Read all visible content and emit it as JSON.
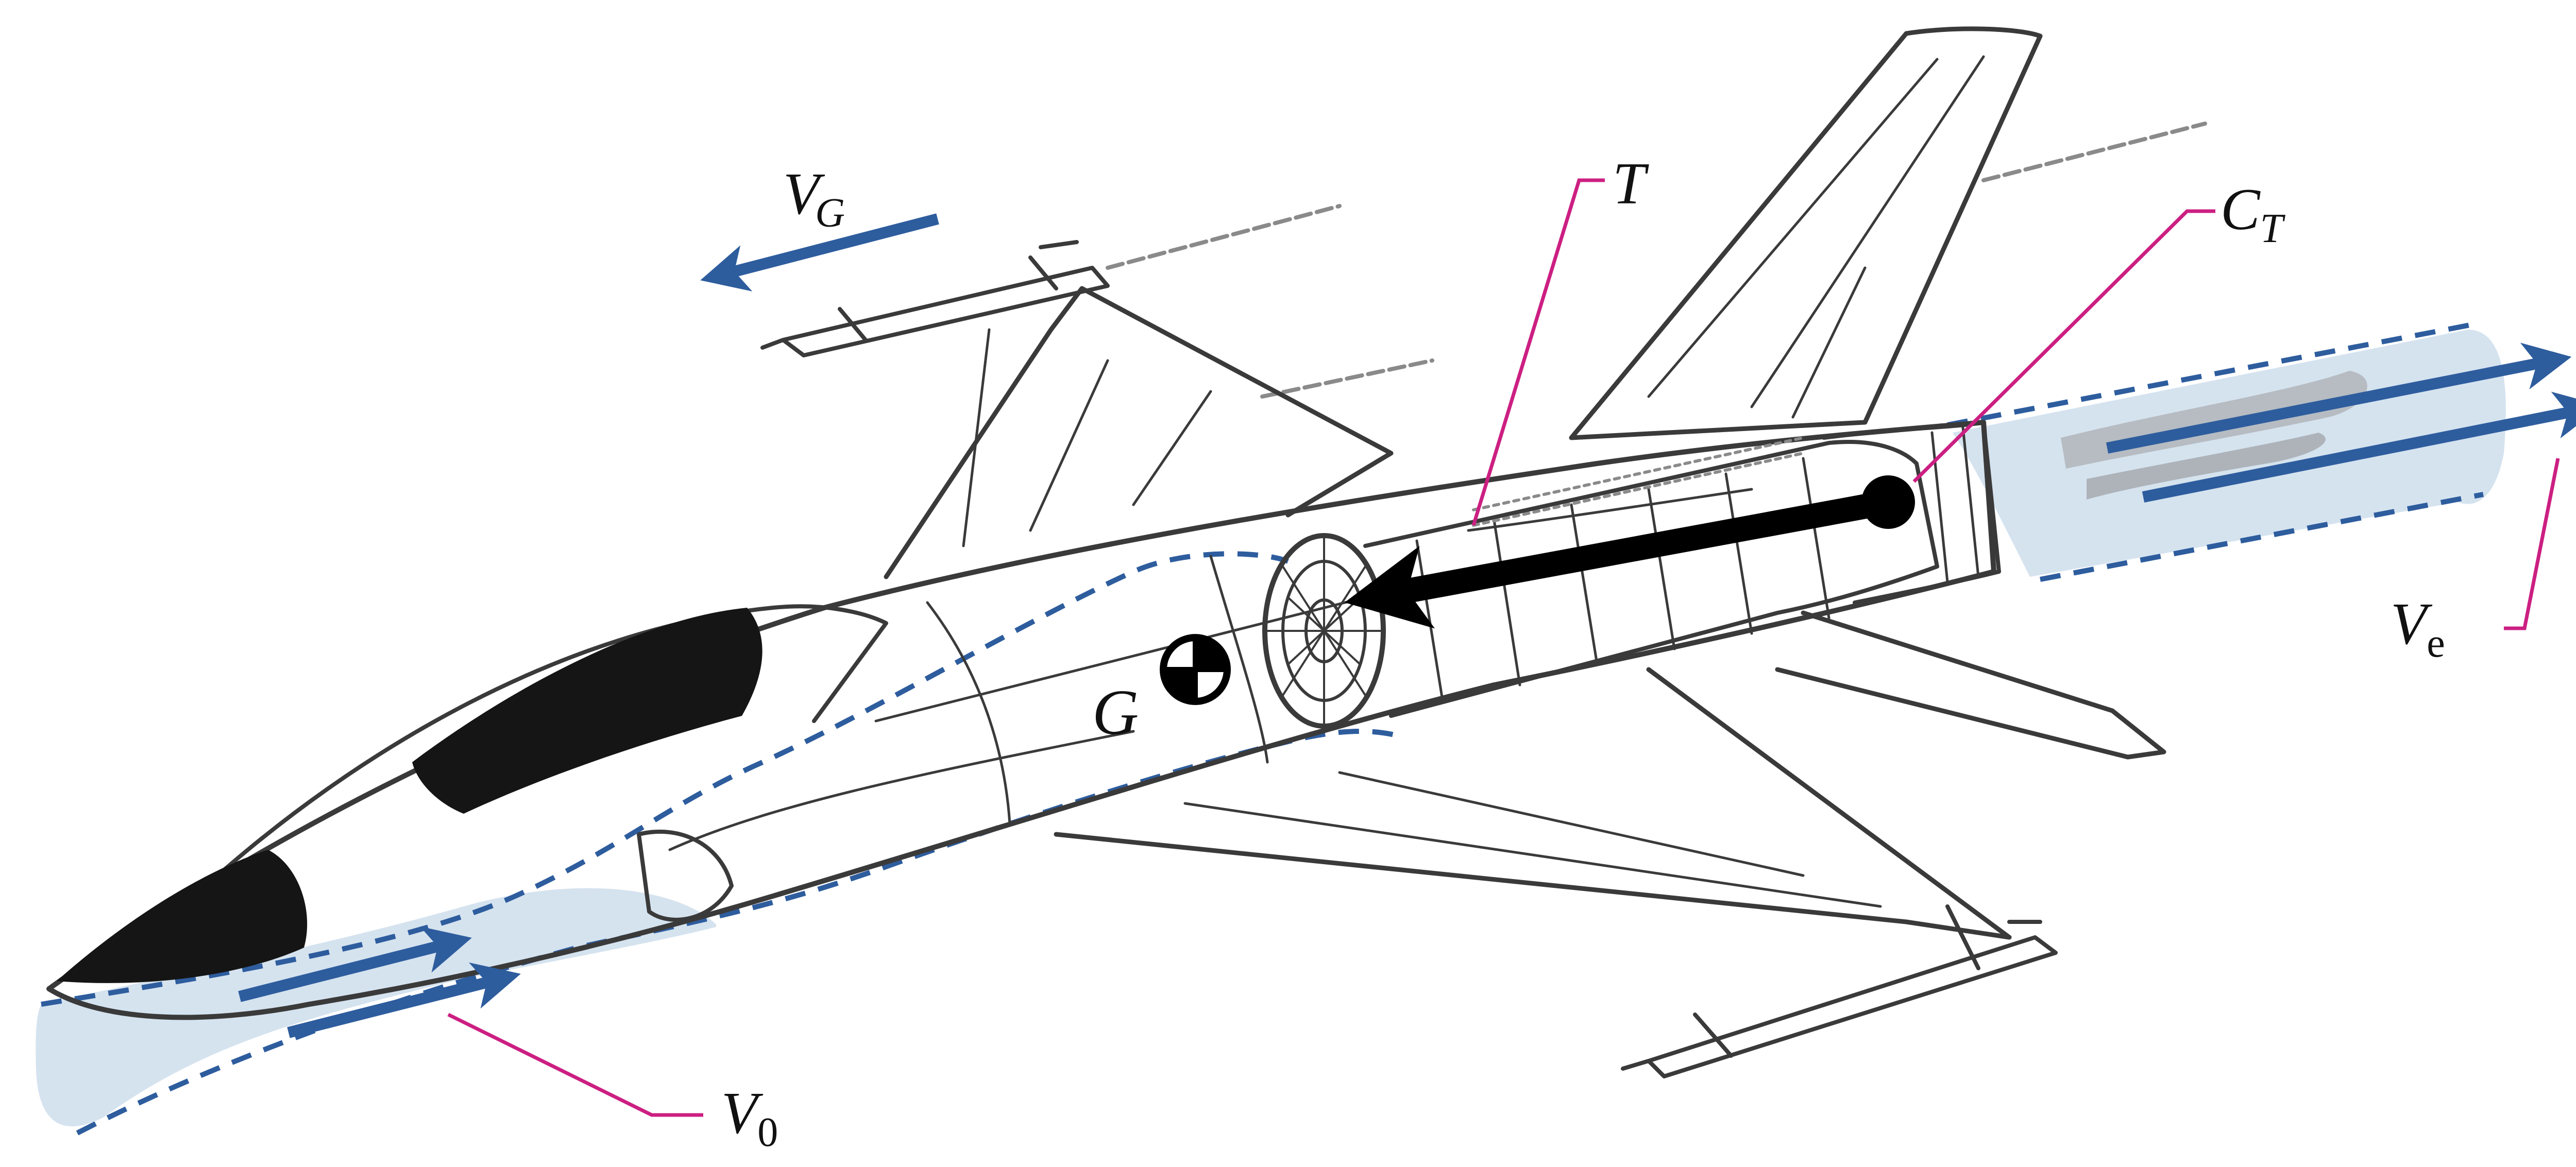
{
  "labels": {
    "ground_velocity": {
      "main": "V",
      "sub": "G"
    },
    "thrust": {
      "main": "T"
    },
    "thrust_center": {
      "main": "C",
      "sub": "T"
    },
    "exhaust_velocity": {
      "main": "V",
      "sub": "e"
    },
    "center_of_gravity": {
      "main": "G"
    },
    "inlet_velocity": {
      "main": "V",
      "sub": "0"
    }
  },
  "colors": {
    "flow": "#2e5d9e",
    "stream_fill": "#d5e3ef",
    "leader": "#cc1f82",
    "thrust_arrow": "#000000",
    "sketch": "#3a3a3a"
  },
  "icons": {
    "cg": "center-of-gravity-symbol",
    "aircraft": "fighter-jet-line-drawing"
  }
}
